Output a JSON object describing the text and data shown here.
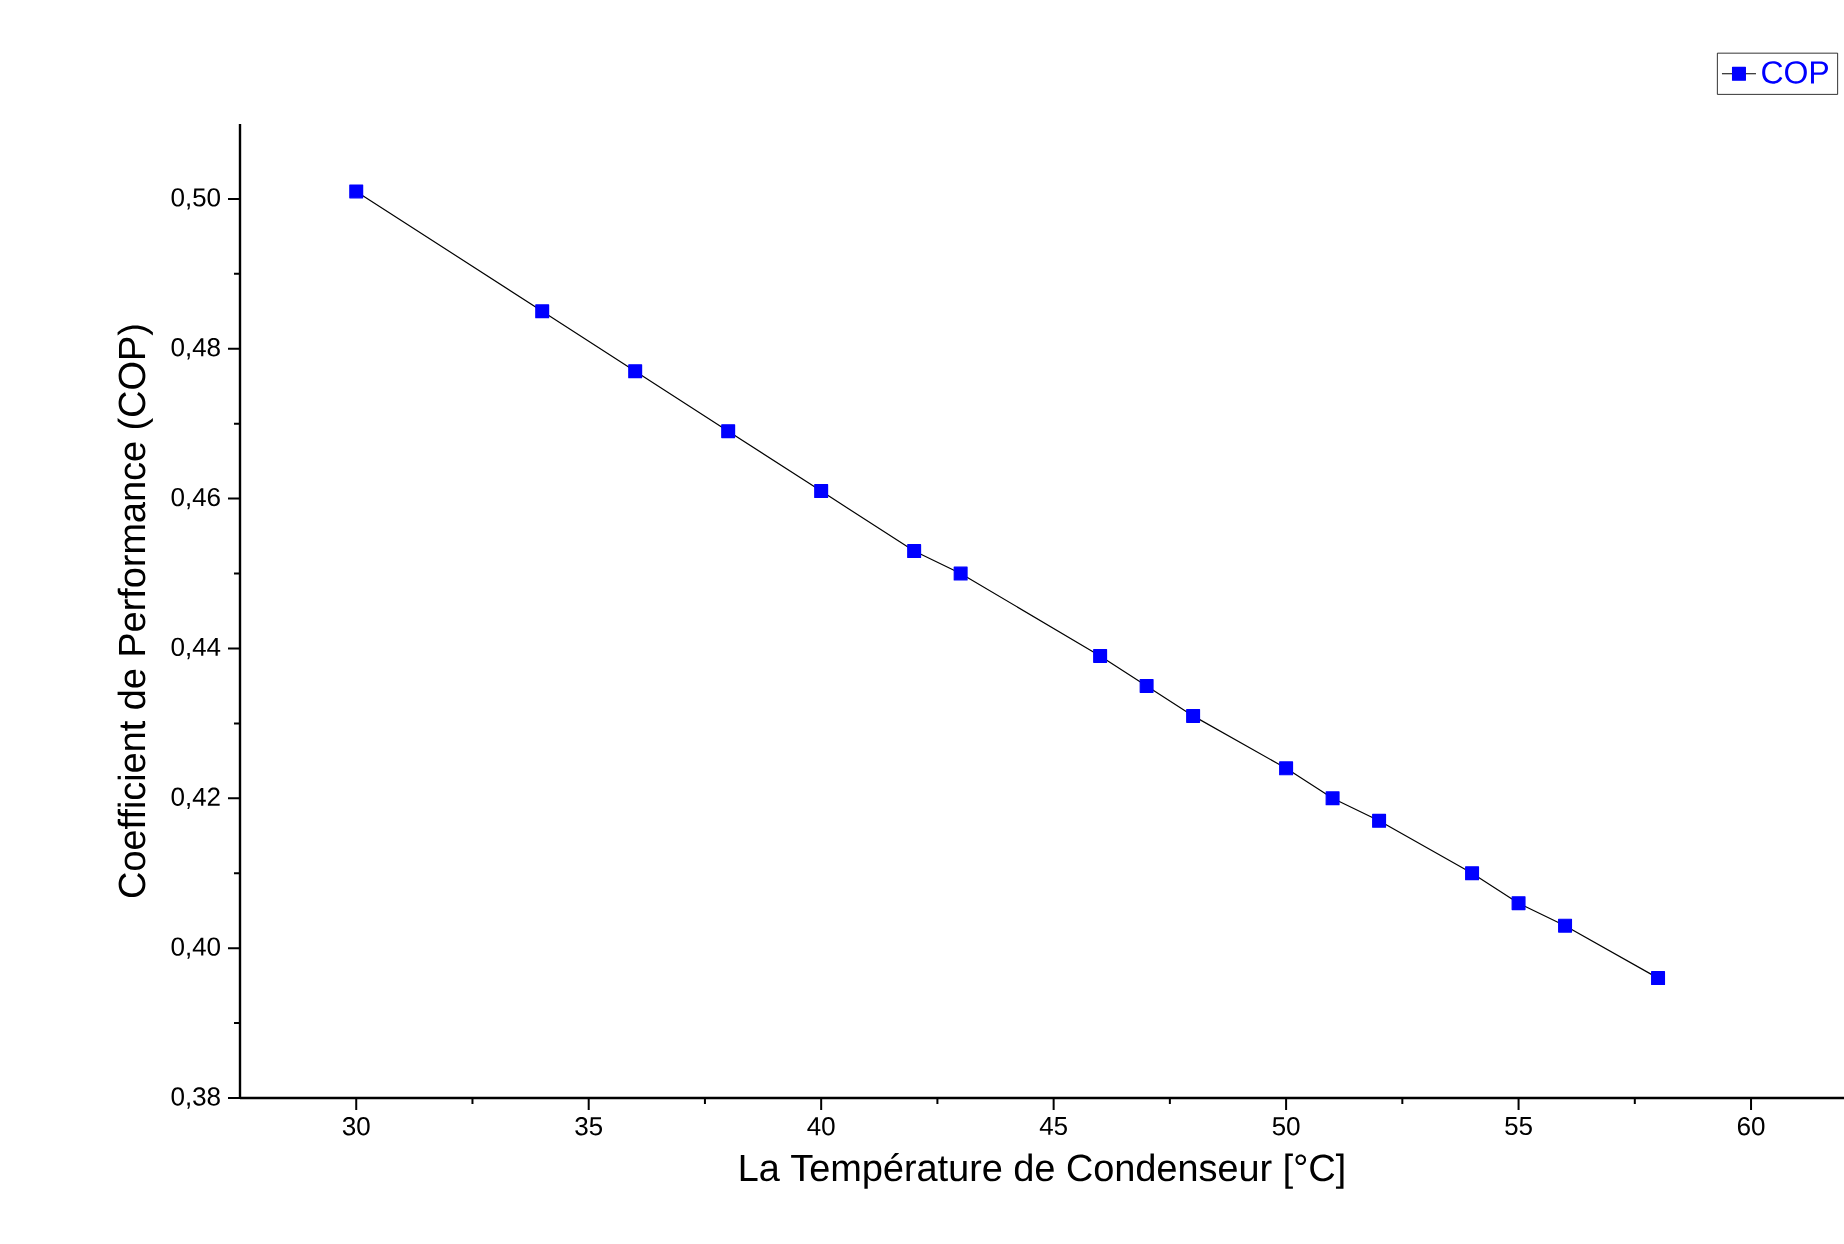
{
  "chart_data": {
    "type": "line",
    "xlabel": "La Température de Condenseur [°C]",
    "ylabel": "Coefficient de Performance (COP)",
    "x": [
      30,
      34,
      36,
      38,
      40,
      42,
      43,
      46,
      47,
      48,
      50,
      51,
      52,
      54,
      55,
      56,
      58
    ],
    "series": [
      {
        "name": "COP",
        "color": "#0000ff",
        "values": [
          0.501,
          0.485,
          0.477,
          0.469,
          0.461,
          0.453,
          0.45,
          0.439,
          0.435,
          0.431,
          0.424,
          0.42,
          0.417,
          0.41,
          0.406,
          0.403,
          0.396
        ]
      }
    ],
    "xlim": [
      27.5,
      62
    ],
    "ylim": [
      0.38,
      0.51
    ],
    "xticks": [
      30,
      35,
      40,
      45,
      50,
      55,
      60
    ],
    "yticks": [
      {
        "value": 0.38,
        "label": "0,38"
      },
      {
        "value": 0.4,
        "label": "0,40"
      },
      {
        "value": 0.42,
        "label": "0,42"
      },
      {
        "value": 0.44,
        "label": "0,44"
      },
      {
        "value": 0.46,
        "label": "0,46"
      },
      {
        "value": 0.48,
        "label": "0,48"
      },
      {
        "value": 0.5,
        "label": "0,50"
      }
    ],
    "grid": false,
    "legend": "top right",
    "marker": "square",
    "line_style": "solid"
  }
}
